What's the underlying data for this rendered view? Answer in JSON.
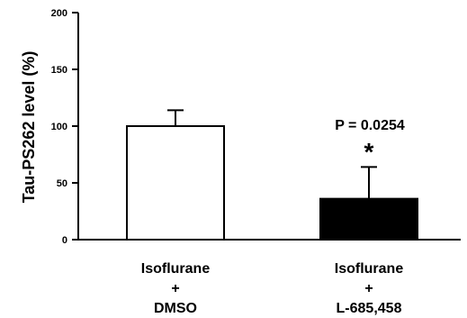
{
  "chart_data": {
    "type": "bar",
    "ylabel": "Tau-PS262 level (%)",
    "ylim": [
      0,
      200
    ],
    "yticks": [
      "0",
      "50",
      "100",
      "150",
      "200"
    ],
    "categories": [
      [
        "Isoflurane",
        "+",
        "DMSO"
      ],
      [
        "Isoflurane",
        "+",
        "L-685,458"
      ]
    ],
    "values": [
      100,
      36
    ],
    "errors": [
      14,
      28
    ],
    "bar_colors": [
      "#ffffff",
      "#000000"
    ],
    "annotation": {
      "text": "P = 0.0254",
      "star": "*"
    },
    "grid": false
  }
}
